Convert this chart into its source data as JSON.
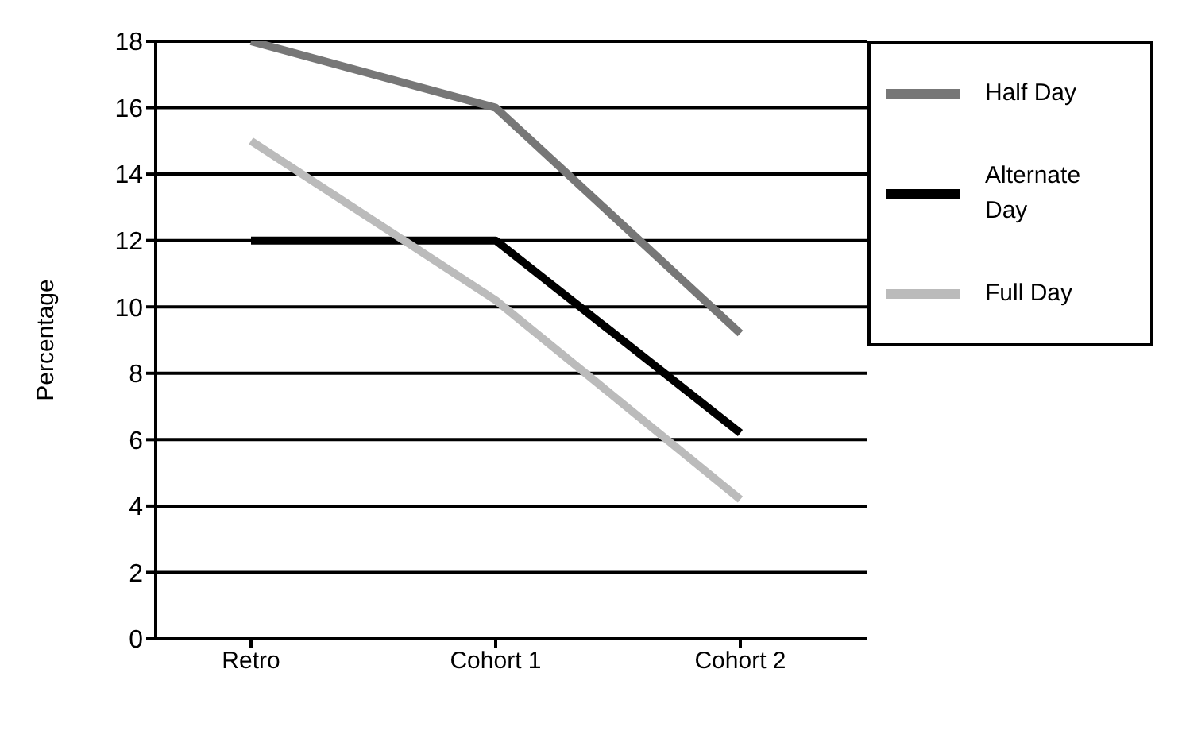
{
  "chart_data": {
    "type": "line",
    "ylabel": "Percentage",
    "categories": [
      "Retro",
      "Cohort 1",
      "Cohort 2"
    ],
    "series": [
      {
        "name": "Half Day",
        "color": "#777777",
        "values": [
          18,
          16,
          9.2
        ]
      },
      {
        "name": "Alternate Day",
        "color": "#000000",
        "values": [
          12,
          12,
          6.2
        ]
      },
      {
        "name": "Full Day",
        "color": "#bbbbbb",
        "values": [
          15,
          10.2,
          4.2
        ]
      }
    ],
    "ylim": [
      0,
      18
    ],
    "yticks": [
      0,
      2,
      4,
      6,
      8,
      10,
      12,
      14,
      16,
      18
    ],
    "grid": "y",
    "legend": "right",
    "marker": "none",
    "line_style": "solid"
  }
}
